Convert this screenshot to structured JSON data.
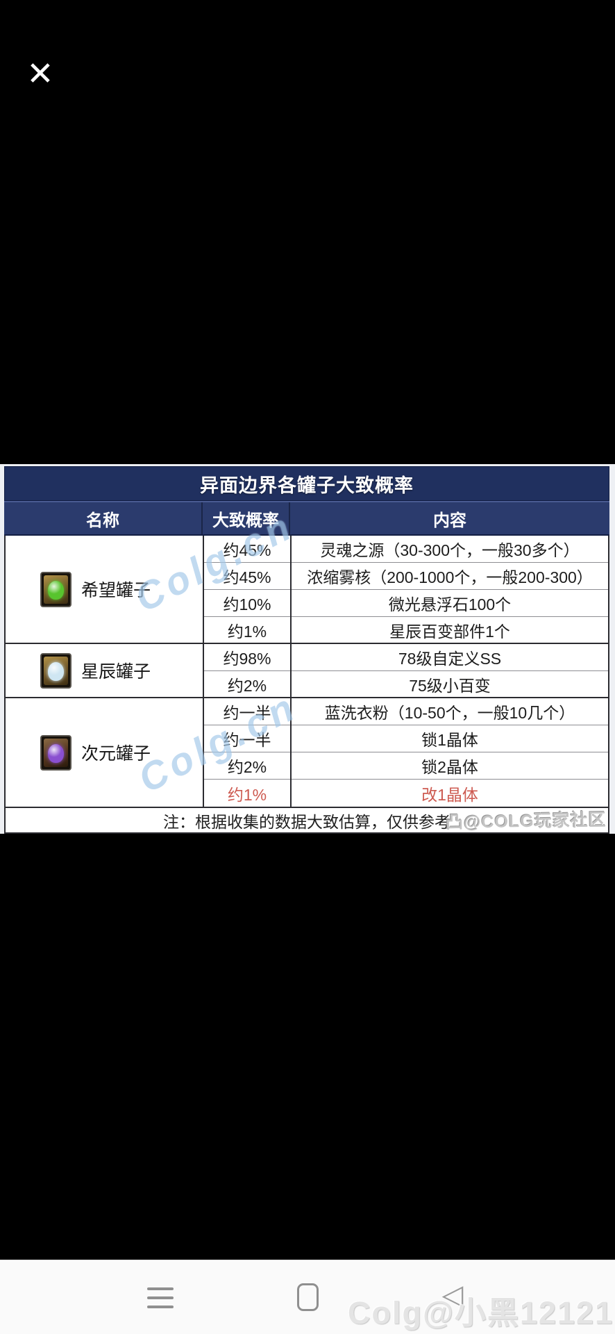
{
  "theme": {
    "title_bar_bg": "#20305f",
    "header_bg": "#2b3b6d",
    "body_bg": "#ffffff",
    "red_text": "#cd5a50",
    "watermark_blue": "#7db2e0",
    "nav_icon_gray": "#8f8f8f",
    "page_bg": "#000000"
  },
  "viewer": {
    "close_icon": "✕"
  },
  "table": {
    "title": "异面边界各罐子大致概率",
    "columns": [
      "名称",
      "大致概率",
      "内容"
    ],
    "groups": [
      {
        "name": "希望罐子",
        "icon": "hope-jar-icon",
        "row_span": 4
      },
      {
        "name": "星辰罐子",
        "icon": "star-jar-icon",
        "row_span": 2
      },
      {
        "name": "次元罐子",
        "icon": "dimension-jar-icon",
        "row_span": 4
      }
    ],
    "rows": [
      {
        "prob": "约45%",
        "content": "灵魂之源（30-300个，一般30多个）",
        "highlight": false
      },
      {
        "prob": "约45%",
        "content": "浓缩雾核（200-1000个，一般200-300）",
        "highlight": false
      },
      {
        "prob": "约10%",
        "content": "微光悬浮石100个",
        "highlight": false
      },
      {
        "prob": "约1%",
        "content": "星辰百变部件1个",
        "highlight": false
      },
      {
        "prob": "约98%",
        "content": "78级自定义SS",
        "highlight": false
      },
      {
        "prob": "约2%",
        "content": "75级小百变",
        "highlight": false
      },
      {
        "prob": "约一半",
        "content": "蓝洗衣粉（10-50个，一般10几个）",
        "highlight": false
      },
      {
        "prob": "约一半",
        "content": "锁1晶体",
        "highlight": false
      },
      {
        "prob": "约2%",
        "content": "锁2晶体",
        "highlight": false
      },
      {
        "prob": "约1%",
        "content": "改1晶体",
        "highlight": true
      }
    ],
    "note": "注：根据收集的数据大致估算，仅供参考"
  },
  "watermarks": {
    "colg_cn": "Colg.cn",
    "colg_community": "凸@COLG玩家社区",
    "author": "Colg@小黑12121"
  },
  "navbar": {
    "back_icon": "◁"
  }
}
